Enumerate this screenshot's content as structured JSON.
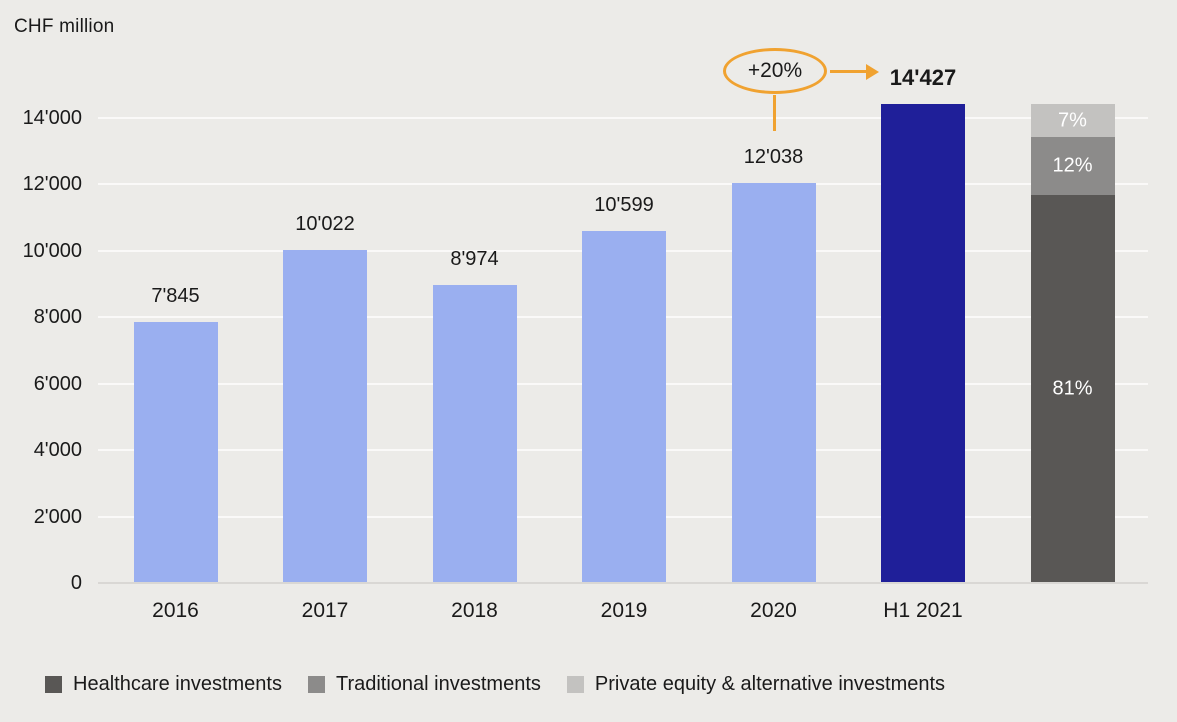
{
  "chart_data": {
    "type": "bar",
    "title": "CHF million",
    "unit": "CHF million",
    "categories": [
      "2016",
      "2017",
      "2018",
      "2019",
      "2020",
      "H1 2021"
    ],
    "values": [
      7845,
      10022,
      8974,
      10599,
      12038,
      14427
    ],
    "value_labels": [
      "7'845",
      "10'022",
      "8'974",
      "10'599",
      "12'038",
      "14'427"
    ],
    "highlight_category": "H1 2021",
    "ylim": [
      0,
      14000
    ],
    "yticks": [
      {
        "value": 0,
        "label": "0"
      },
      {
        "value": 2000,
        "label": "2'000"
      },
      {
        "value": 4000,
        "label": "4'000"
      },
      {
        "value": 6000,
        "label": "6'000"
      },
      {
        "value": 8000,
        "label": "8'000"
      },
      {
        "value": 10000,
        "label": "10'000"
      },
      {
        "value": 12000,
        "label": "12'000"
      },
      {
        "value": 14000,
        "label": "14'000"
      }
    ],
    "grid": "horizontal",
    "annotation": {
      "badge": "+20%",
      "points_to_label": "14'427",
      "from_category": "2020",
      "to_category": "H1 2021"
    },
    "breakdown_bar": {
      "total": 14427,
      "segments_bottom_to_top": [
        {
          "name": "Healthcare investments",
          "pct": 81,
          "label": "81%",
          "color": "#595755"
        },
        {
          "name": "Traditional investments",
          "pct": 12,
          "label": "12%",
          "color": "#8C8B8A"
        },
        {
          "name": "Private equity & alternative investments",
          "pct": 7,
          "label": "7%",
          "color": "#C3C2C0"
        }
      ]
    },
    "legend": [
      {
        "label": "Healthcare investments",
        "color": "#595755"
      },
      {
        "label": "Traditional investments",
        "color": "#8C8B8A"
      },
      {
        "label": "Private equity & alternative investments",
        "color": "#C3C2C0"
      }
    ],
    "legend_position": "bottom-left",
    "colors": {
      "bar_default": "#9AAFF0",
      "bar_highlight": "#1F1F99",
      "annotation_orange": "#F0A230",
      "background": "#ECEBE8",
      "text": "#1A1A1A",
      "gridline": "#FAF9F8",
      "axis_line": "#D9D7D4"
    }
  }
}
